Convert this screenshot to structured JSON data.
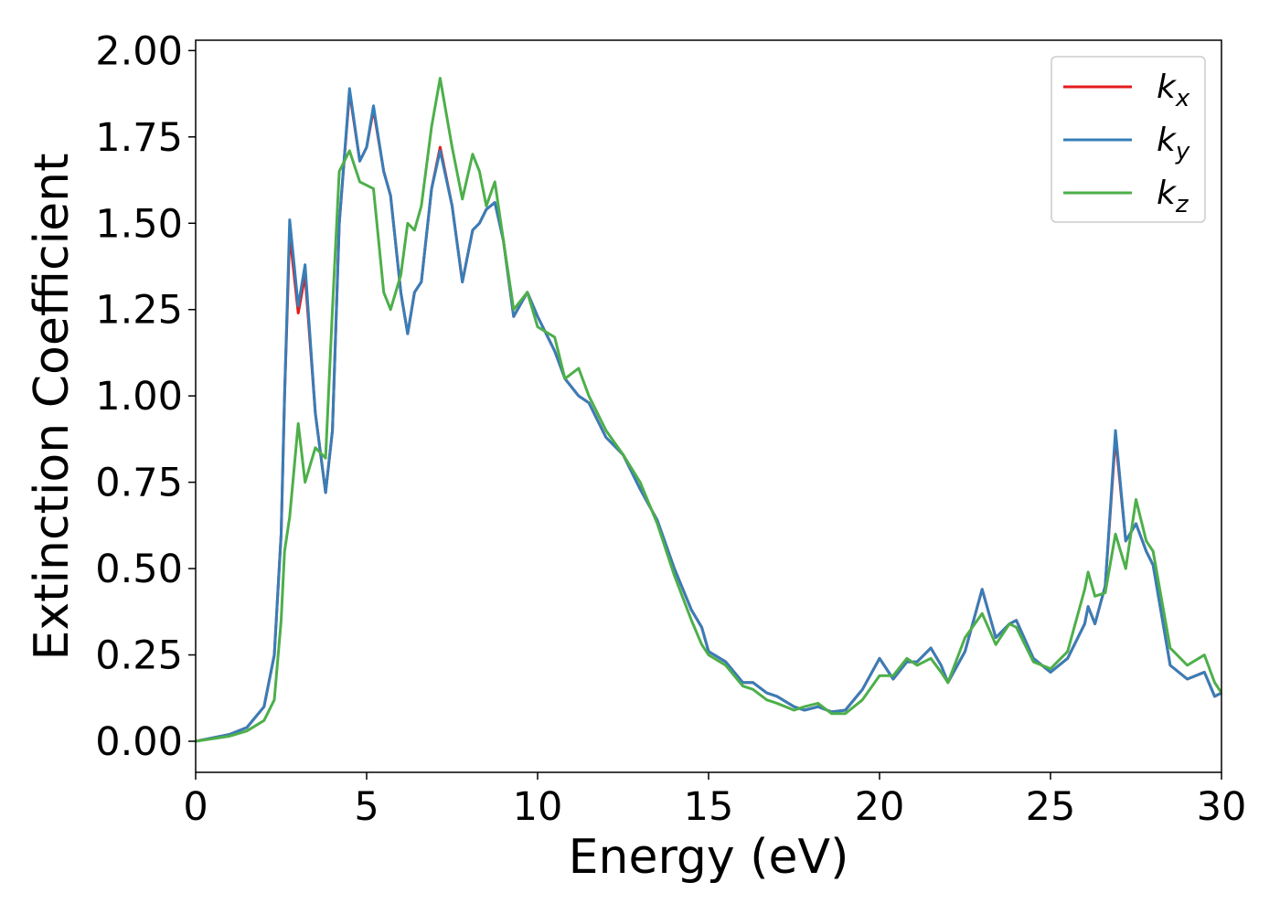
{
  "chart_data": {
    "type": "line",
    "xlabel": "Energy (eV)",
    "ylabel": "Extinction Coefficient",
    "x": [
      0,
      1,
      1.5,
      2,
      2.3,
      2.5,
      2.6,
      2.75,
      3,
      3.2,
      3.5,
      3.8,
      4,
      4.2,
      4.5,
      4.8,
      5,
      5.2,
      5.5,
      5.7,
      6,
      6.2,
      6.4,
      6.6,
      6.9,
      7.15,
      7.5,
      7.8,
      8.1,
      8.3,
      8.5,
      8.75,
      9,
      9.3,
      9.7,
      10,
      10.5,
      10.8,
      11.2,
      11.5,
      12,
      12.5,
      13,
      13.5,
      14,
      14.5,
      14.8,
      15,
      15.5,
      16,
      16.3,
      16.7,
      17,
      17.5,
      17.8,
      18.2,
      18.6,
      19,
      19.5,
      20,
      20.4,
      20.8,
      21.1,
      21.5,
      21.8,
      22,
      22.5,
      23,
      23.4,
      23.8,
      24,
      24.5,
      25,
      25.5,
      26,
      26.1,
      26.3,
      26.6,
      26.9,
      27.2,
      27.5,
      27.8,
      28,
      28.5,
      29,
      29.5,
      29.8,
      30
    ],
    "series": [
      {
        "name": "kx",
        "color": "#e41a1c",
        "values": [
          0,
          0.02,
          0.04,
          0.1,
          0.25,
          0.6,
          1.0,
          1.47,
          1.24,
          1.35,
          0.95,
          0.72,
          0.9,
          1.5,
          1.88,
          1.68,
          1.72,
          1.83,
          1.65,
          1.58,
          1.3,
          1.18,
          1.3,
          1.33,
          1.6,
          1.72,
          1.55,
          1.33,
          1.48,
          1.5,
          1.54,
          1.56,
          1.45,
          1.23,
          1.3,
          1.23,
          1.13,
          1.05,
          1.0,
          0.98,
          0.88,
          0.83,
          0.73,
          0.64,
          0.5,
          0.38,
          0.33,
          0.26,
          0.23,
          0.17,
          0.17,
          0.14,
          0.13,
          0.1,
          0.09,
          0.1,
          0.085,
          0.09,
          0.15,
          0.24,
          0.18,
          0.23,
          0.23,
          0.27,
          0.22,
          0.17,
          0.26,
          0.44,
          0.3,
          0.34,
          0.35,
          0.24,
          0.2,
          0.24,
          0.34,
          0.39,
          0.34,
          0.45,
          0.88,
          0.58,
          0.63,
          0.55,
          0.51,
          0.22,
          0.18,
          0.2,
          0.13,
          0.14
        ]
      },
      {
        "name": "ky",
        "color": "#377eb8",
        "values": [
          0,
          0.02,
          0.04,
          0.1,
          0.25,
          0.6,
          1.0,
          1.51,
          1.26,
          1.38,
          0.95,
          0.72,
          0.9,
          1.5,
          1.89,
          1.68,
          1.72,
          1.84,
          1.65,
          1.58,
          1.3,
          1.18,
          1.3,
          1.33,
          1.6,
          1.71,
          1.55,
          1.33,
          1.48,
          1.5,
          1.54,
          1.56,
          1.45,
          1.23,
          1.3,
          1.23,
          1.13,
          1.05,
          1.0,
          0.98,
          0.88,
          0.83,
          0.73,
          0.64,
          0.5,
          0.38,
          0.33,
          0.26,
          0.23,
          0.17,
          0.17,
          0.14,
          0.13,
          0.1,
          0.09,
          0.1,
          0.085,
          0.09,
          0.15,
          0.24,
          0.18,
          0.23,
          0.23,
          0.27,
          0.22,
          0.17,
          0.26,
          0.44,
          0.3,
          0.34,
          0.35,
          0.24,
          0.2,
          0.24,
          0.34,
          0.39,
          0.34,
          0.45,
          0.9,
          0.58,
          0.63,
          0.55,
          0.51,
          0.22,
          0.18,
          0.2,
          0.13,
          0.14
        ]
      },
      {
        "name": "kz",
        "color": "#4daf4a",
        "values": [
          0,
          0.015,
          0.03,
          0.06,
          0.12,
          0.35,
          0.55,
          0.65,
          0.92,
          0.75,
          0.85,
          0.82,
          1.25,
          1.65,
          1.71,
          1.62,
          1.61,
          1.6,
          1.3,
          1.25,
          1.35,
          1.5,
          1.48,
          1.55,
          1.78,
          1.92,
          1.72,
          1.57,
          1.7,
          1.65,
          1.55,
          1.62,
          1.45,
          1.25,
          1.3,
          1.2,
          1.17,
          1.05,
          1.08,
          1.0,
          0.9,
          0.83,
          0.75,
          0.63,
          0.48,
          0.35,
          0.28,
          0.25,
          0.22,
          0.16,
          0.15,
          0.12,
          0.11,
          0.09,
          0.1,
          0.11,
          0.08,
          0.08,
          0.12,
          0.19,
          0.19,
          0.24,
          0.22,
          0.24,
          0.2,
          0.17,
          0.3,
          0.37,
          0.28,
          0.34,
          0.33,
          0.23,
          0.21,
          0.26,
          0.44,
          0.49,
          0.42,
          0.43,
          0.6,
          0.5,
          0.7,
          0.58,
          0.55,
          0.27,
          0.22,
          0.25,
          0.17,
          0.14
        ]
      }
    ],
    "xlim": [
      0,
      30
    ],
    "xticks": [
      0,
      5,
      10,
      15,
      20,
      25,
      30
    ],
    "ylim": [
      -0.09,
      2.03
    ],
    "yticks": [
      {
        "value": 0,
        "label": "0.00"
      },
      {
        "value": 0.25,
        "label": "0.25"
      },
      {
        "value": 0.5,
        "label": "0.50"
      },
      {
        "value": 0.75,
        "label": "0.75"
      },
      {
        "value": 1,
        "label": "1.00"
      },
      {
        "value": 1.25,
        "label": "1.25"
      },
      {
        "value": 1.5,
        "label": "1.50"
      },
      {
        "value": 1.75,
        "label": "1.75"
      },
      {
        "value": 2,
        "label": "2.00"
      }
    ],
    "legend": "upper right",
    "grid": false
  }
}
